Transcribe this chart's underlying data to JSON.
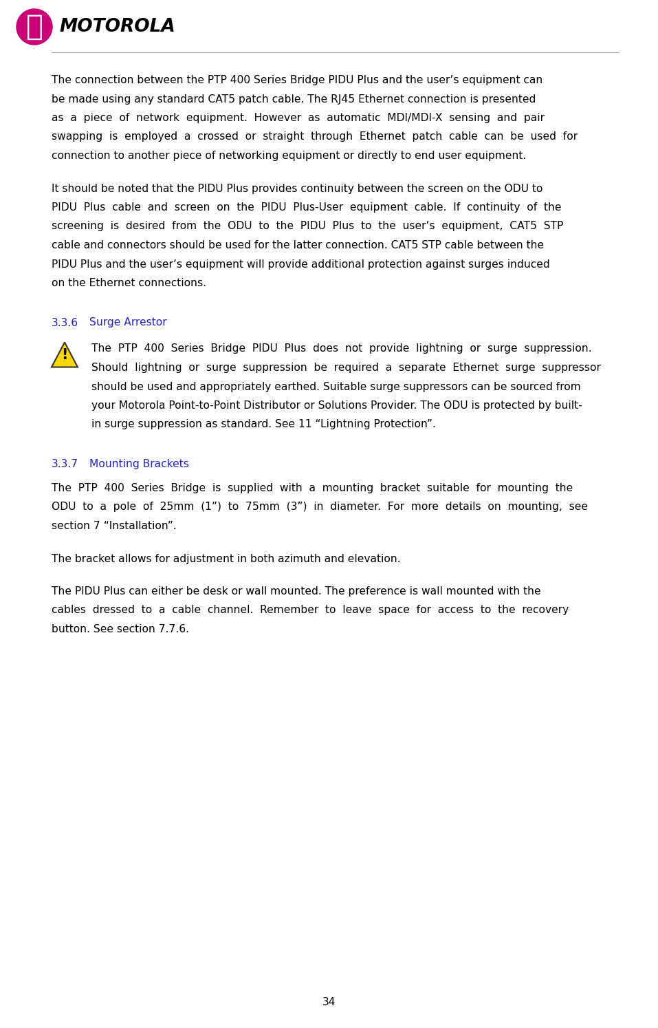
{
  "page_number": "34",
  "background_color": "#ffffff",
  "text_color": "#000000",
  "heading_color": "#2222cc",
  "logo_circle_color": "#cc0077",
  "logo_text_color": "#000000",
  "section_336": "3.3.6",
  "section_336_title": "Surge Arrestor",
  "section_337": "3.3.7",
  "section_337_title": "Mounting Brackets",
  "para1": "The connection between the PTP 400 Series Bridge PIDU Plus and the user’s equipment can be made using any standard CAT5 patch cable. The RJ45 Ethernet connection is presented as  a  piece  of  network  equipment.  However  as  automatic  MDI/MDI-X  sensing  and  pair swapping  is  employed  a  crossed  or  straight  through  Ethernet  patch  cable  can  be  used  for connection to another piece of networking equipment or directly to end user equipment.",
  "para1_lines": [
    "The connection between the PTP 400 Series Bridge PIDU Plus and the user’s equipment can",
    "be made using any standard CAT5 patch cable. The RJ45 Ethernet connection is presented",
    "as  a  piece  of  network  equipment.  However  as  automatic  MDI/MDI-X  sensing  and  pair",
    "swapping  is  employed  a  crossed  or  straight  through  Ethernet  patch  cable  can  be  used  for",
    "connection to another piece of networking equipment or directly to end user equipment."
  ],
  "para2_lines": [
    "It should be noted that the PIDU Plus provides continuity between the screen on the ODU to",
    "PIDU  Plus  cable  and  screen  on  the  PIDU  Plus-User  equipment  cable.  If  continuity  of  the",
    "screening  is  desired  from  the  ODU  to  the  PIDU  Plus  to  the  user’s  equipment,  CAT5  STP",
    "cable and connectors should be used for the latter connection. CAT5 STP cable between the",
    "PIDU Plus and the user’s equipment will provide additional protection against surges induced",
    "on the Ethernet connections."
  ],
  "para336_lines": [
    "The  PTP  400  Series  Bridge  PIDU  Plus  does  not  provide  lightning  or  surge  suppression.",
    "Should  lightning  or  surge  suppression  be  required  a  separate  Ethernet  surge  suppressor",
    "should be used and appropriately earthed. Suitable surge suppressors can be sourced from",
    "your Motorola Point-to-Point Distributor or Solutions Provider. The ODU is protected by built-",
    "in surge suppression as standard. See 11 “Lightning Protection”."
  ],
  "para337_1_lines": [
    "The  PTP  400  Series  Bridge  is  supplied  with  a  mounting  bracket  suitable  for  mounting  the",
    "ODU  to  a  pole  of  25mm  (1”)  to  75mm  (3”)  in  diameter.  For  more  details  on  mounting,  see",
    "section 7 “Installation”."
  ],
  "para337_2": "The bracket allows for adjustment in both azimuth and elevation.",
  "para337_3_lines": [
    "The PIDU Plus can either be desk or wall mounted. The preference is wall mounted with the",
    "cables  dressed  to  a  cable  channel.  Remember  to  leave  space  for  access  to  the  recovery",
    "button. See section 7.7.6."
  ]
}
